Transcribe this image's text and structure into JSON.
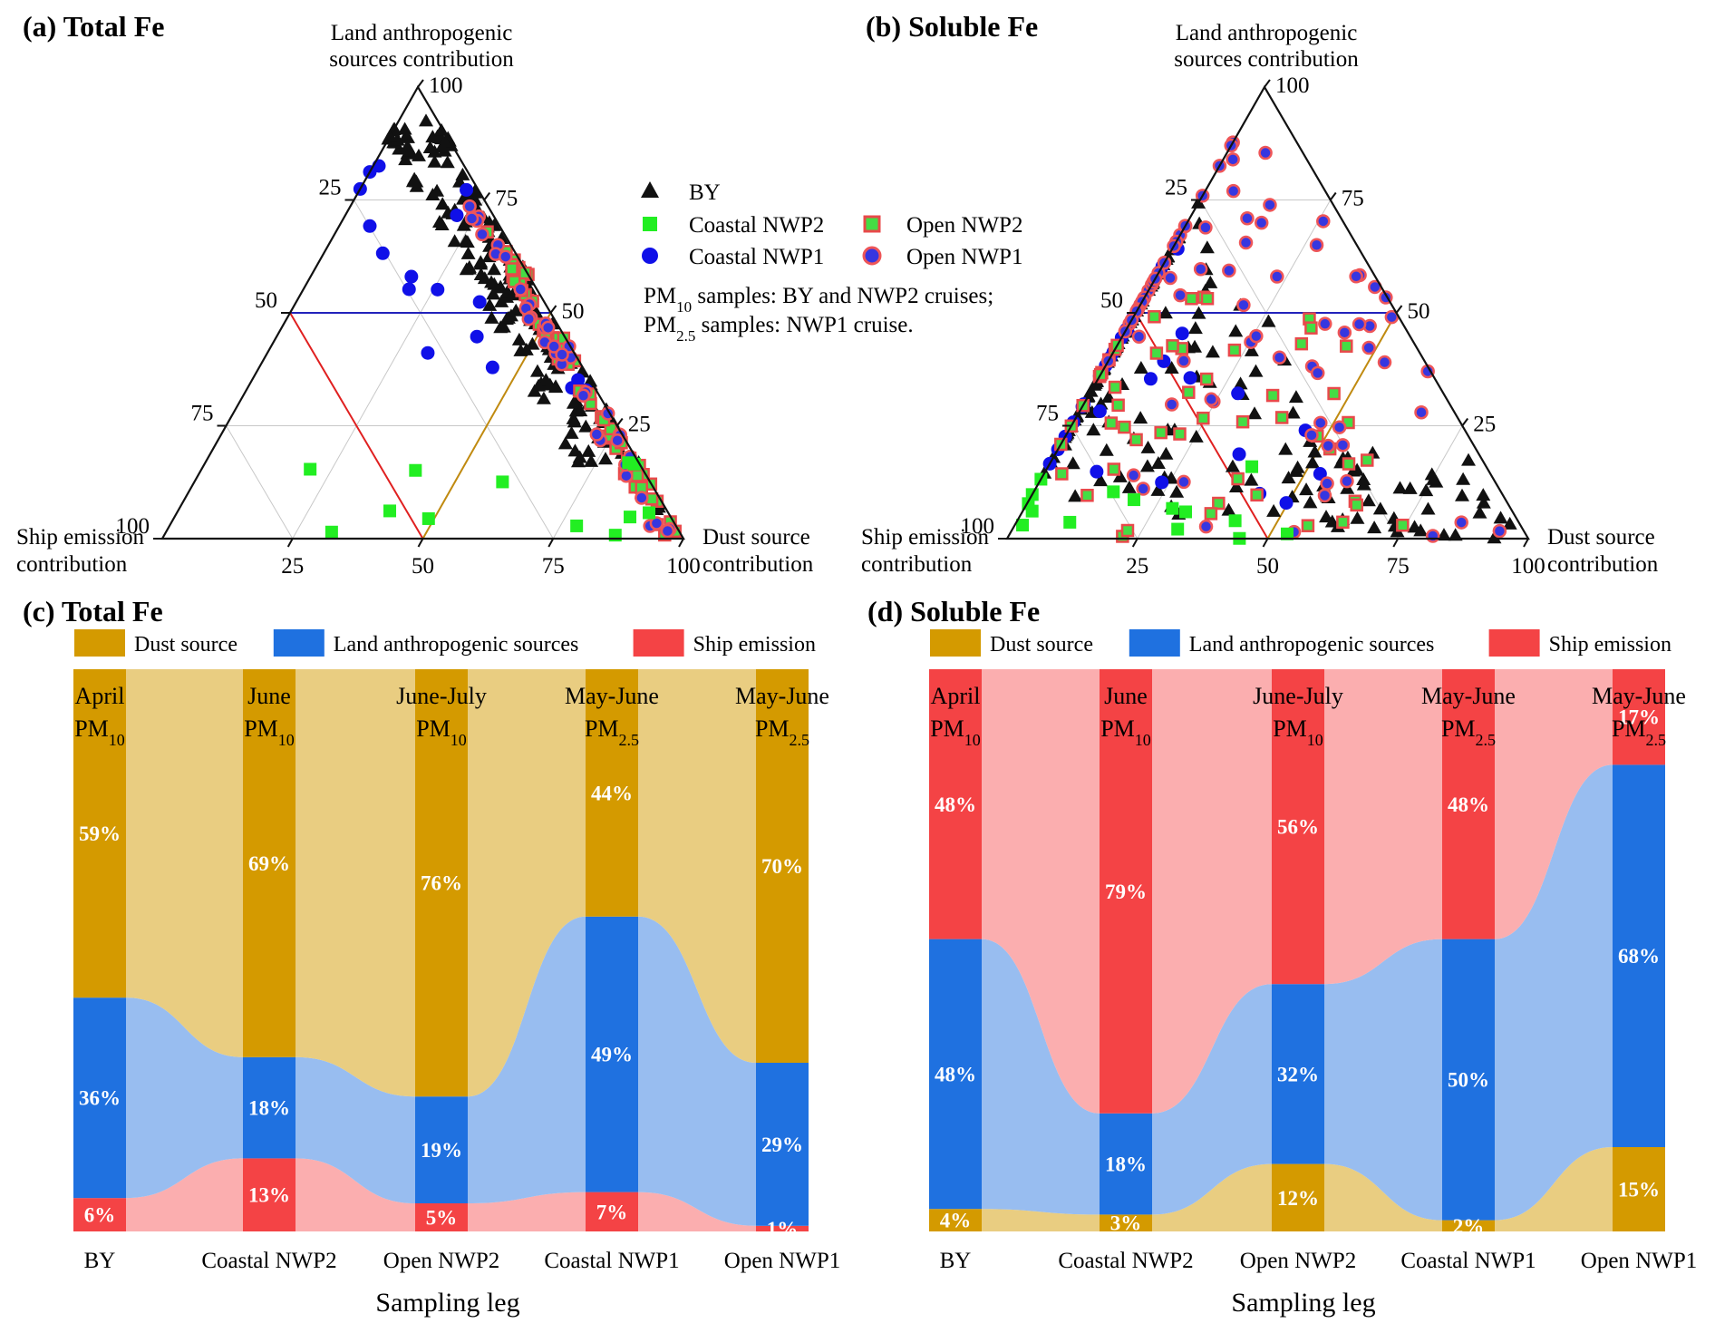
{
  "colors": {
    "dust": "#d49a00",
    "land": "#1f71e0",
    "ship": "#f44345",
    "dust_flow": "#e7c976",
    "land_flow": "#8fb7ef",
    "ship_flow": "#fba7a8",
    "grid": "#c8c8c8",
    "axis": "#111111"
  },
  "ternary": [
    {
      "title": "(a) Total Fe",
      "top_label": [
        "Land anthropogenic",
        "sources contribution"
      ],
      "left_label": [
        "Ship emission",
        "contribution"
      ],
      "right_label": [
        "Dust source",
        "contribution"
      ],
      "ticks": [
        "25",
        "50",
        "75",
        "100"
      ],
      "bottom_ticks": [
        "25",
        "50",
        "75",
        "100"
      ],
      "left_ticks": [
        "25",
        "50",
        "75",
        "100"
      ],
      "right_ticks": [
        "25",
        "50",
        "75",
        "100"
      ],
      "legend": {
        "items": [
          {
            "label": "BY",
            "marker": "triangle"
          },
          {
            "label": "Coastal NWP2",
            "marker": "square-green"
          },
          {
            "label": "Open NWP2",
            "marker": "square-outlined"
          },
          {
            "label": "Coastal NWP1",
            "marker": "circle-blue"
          },
          {
            "label": "Open NWP1",
            "marker": "circle-outlined"
          }
        ],
        "note_line1": "samples: BY and NWP2 cruises;",
        "note_line2": "samples: NWP1 cruise.",
        "pm10": "PM",
        "pm10_sub": "10",
        "pm25": "PM",
        "pm25_sub": "2.5"
      },
      "points_note": "Scatter of daily source contributions (dust, land anthropogenic, ship) per sample"
    },
    {
      "title": "(b) Soluble Fe",
      "top_label": [
        "Land anthropogenic",
        "sources contribution"
      ],
      "left_label": [
        "Ship emission",
        "contribution"
      ],
      "right_label": [
        "Dust source",
        "contribution"
      ],
      "bottom_ticks": [
        "25",
        "50",
        "75",
        "100"
      ],
      "left_ticks": [
        "25",
        "50",
        "75",
        "100"
      ],
      "right_ticks": [
        "25",
        "50",
        "75",
        "100"
      ]
    }
  ],
  "chart_data": [
    {
      "type": "bar",
      "title": "(c) Total Fe",
      "xlabel": "Sampling leg",
      "ylabel": "",
      "categories": [
        "BY",
        "Coastal NWP2",
        "Open NWP2",
        "Coastal NWP1",
        "Open NWP1"
      ],
      "period_labels": [
        {
          "period": "April",
          "pm": "PM",
          "sub": "10"
        },
        {
          "period": "June",
          "pm": "PM",
          "sub": "10"
        },
        {
          "period": "June-July",
          "pm": "PM",
          "sub": "10"
        },
        {
          "period": "May-June",
          "pm": "PM",
          "sub": "2.5"
        },
        {
          "period": "May-June",
          "pm": "PM",
          "sub": "2.5"
        }
      ],
      "stack_order_bottom_to_top": [
        "Ship emission",
        "Land anthropogenic sources",
        "Dust source"
      ],
      "series": [
        {
          "name": "Dust source",
          "values": [
            59,
            69,
            76,
            44,
            70
          ]
        },
        {
          "name": "Land anthropogenic sources",
          "values": [
            36,
            18,
            19,
            49,
            29
          ]
        },
        {
          "name": "Ship emission",
          "values": [
            6,
            13,
            5,
            7,
            1
          ]
        }
      ],
      "labels": {
        "Dust source": [
          "59%",
          "69%",
          "76%",
          "44%",
          "70%"
        ],
        "Land anthropogenic sources": [
          "36%",
          "18%",
          "19%",
          "49%",
          "29%"
        ],
        "Ship emission": [
          "6%",
          "13%",
          "5%",
          "7%",
          "1%"
        ]
      },
      "legend": [
        "Dust source",
        "Land anthropogenic sources",
        "Ship emission"
      ]
    },
    {
      "type": "bar",
      "title": "(d) Soluble Fe",
      "xlabel": "Sampling leg",
      "ylabel": "",
      "categories": [
        "BY",
        "Coastal NWP2",
        "Open NWP2",
        "Coastal NWP1",
        "Open NWP1"
      ],
      "period_labels": [
        {
          "period": "April",
          "pm": "PM",
          "sub": "10"
        },
        {
          "period": "June",
          "pm": "PM",
          "sub": "10"
        },
        {
          "period": "June-July",
          "pm": "PM",
          "sub": "10"
        },
        {
          "period": "May-June",
          "pm": "PM",
          "sub": "2.5"
        },
        {
          "period": "May-June",
          "pm": "PM",
          "sub": "2.5"
        }
      ],
      "stack_order_bottom_to_top": [
        "Dust source",
        "Land anthropogenic sources",
        "Ship emission"
      ],
      "series": [
        {
          "name": "Dust source",
          "values": [
            4,
            3,
            12,
            2,
            15
          ]
        },
        {
          "name": "Land anthropogenic sources",
          "values": [
            48,
            18,
            32,
            50,
            68
          ]
        },
        {
          "name": "Ship emission",
          "values": [
            48,
            79,
            56,
            48,
            17
          ]
        }
      ],
      "labels": {
        "Dust source": [
          "4%",
          "3%",
          "12%",
          "2%",
          "15%"
        ],
        "Land anthropogenic sources": [
          "48%",
          "18%",
          "32%",
          "50%",
          "68%"
        ],
        "Ship emission": [
          "48%",
          "79%",
          "56%",
          "48%",
          "17%"
        ]
      },
      "legend": [
        "Dust source",
        "Land anthropogenic sources",
        "Ship emission"
      ]
    }
  ]
}
